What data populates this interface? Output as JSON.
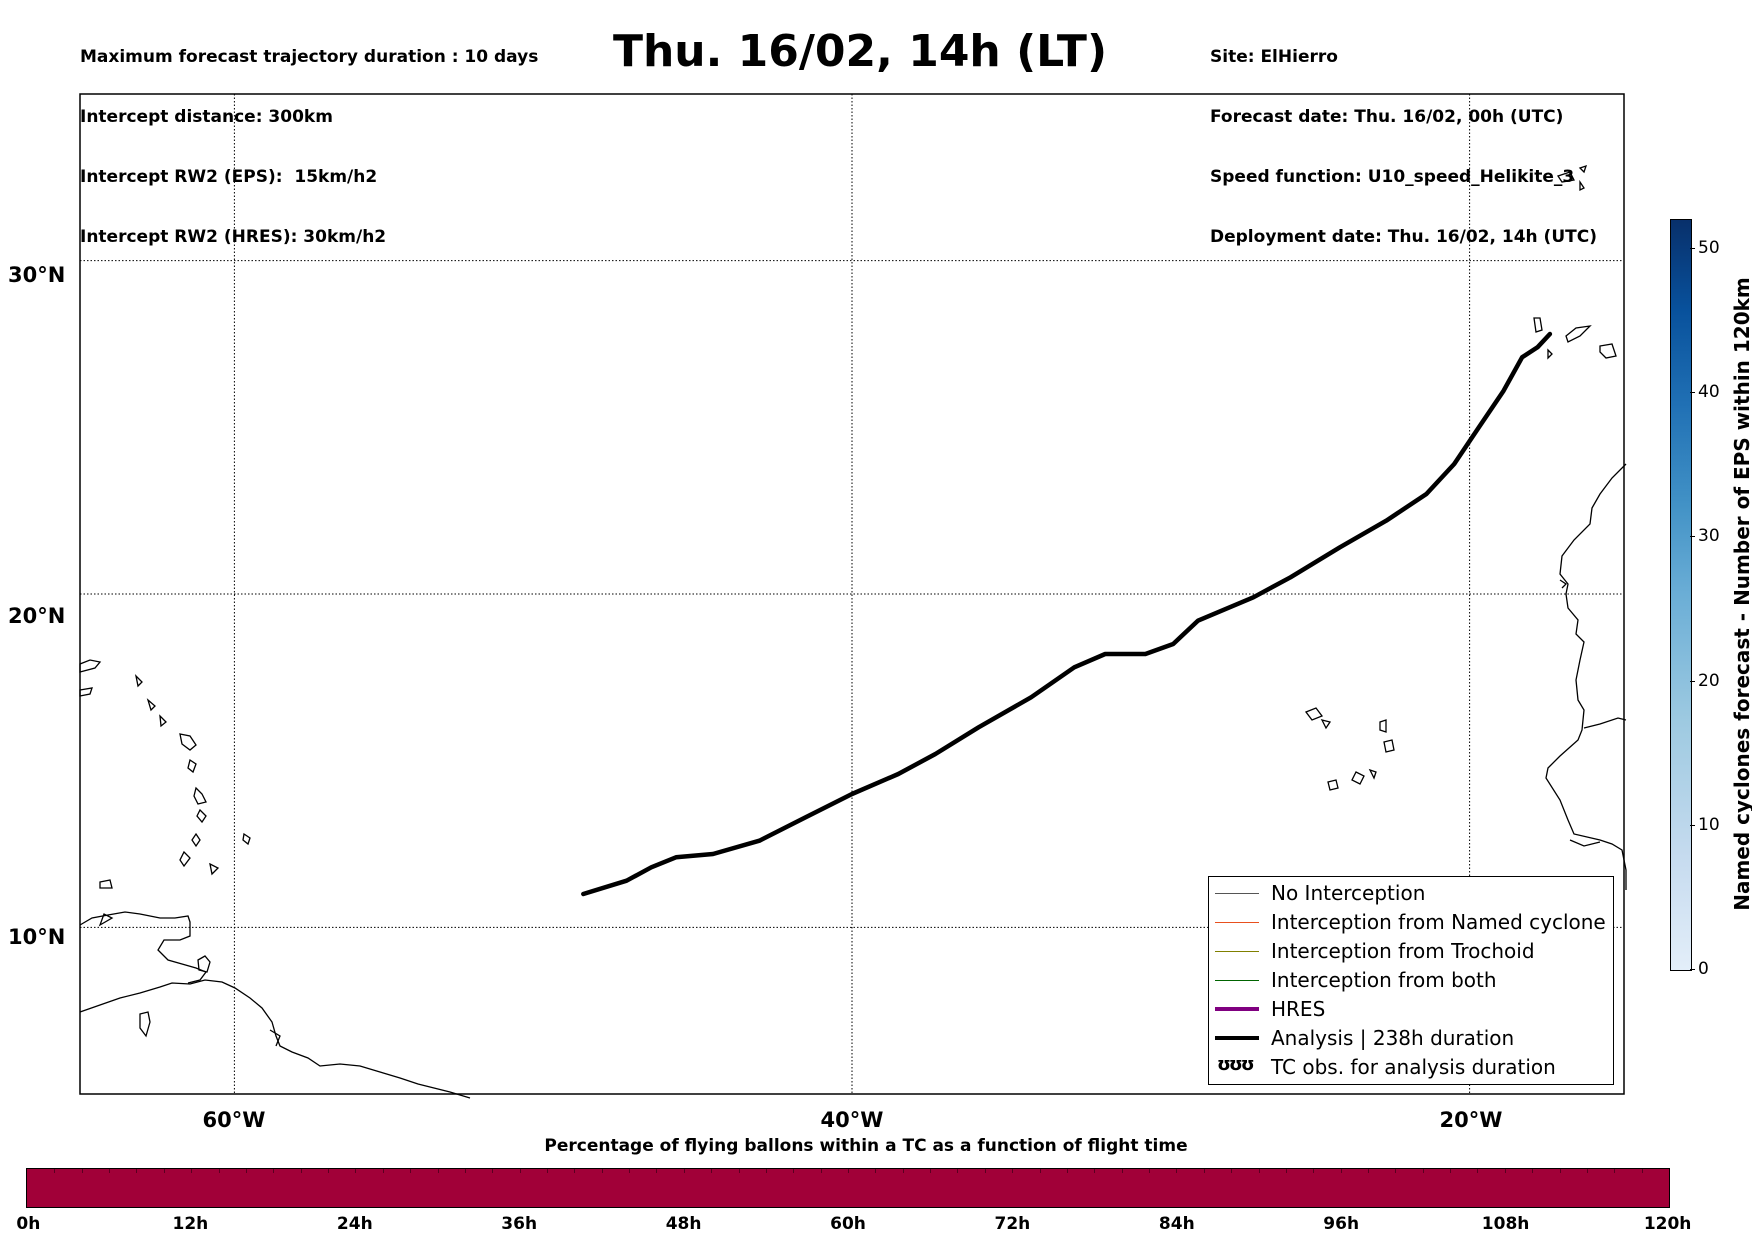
{
  "header": {
    "left_lines": [
      "Maximum forecast trajectory duration : 10 days",
      "Intercept distance: 300km",
      "Intercept RW2 (EPS):  15km/h2",
      "Intercept RW2 (HRES): 30km/h2"
    ],
    "title": "Thu. 16/02, 14h (LT)",
    "right_lines": [
      "Site: ElHierro",
      "Forecast date: Thu. 16/02, 00h (UTC)",
      "Speed function: U10_speed_Helikite_3",
      "Deployment date: Thu. 16/02, 14h (UTC)"
    ]
  },
  "map": {
    "lon_range": [
      -65,
      -15
    ],
    "lat_range": [
      5,
      35
    ],
    "lat_ticks": [
      {
        "value": 30,
        "label": "30°N"
      },
      {
        "value": 20,
        "label": "20°N"
      },
      {
        "value": 10,
        "label": "10°N"
      }
    ],
    "lon_ticks": [
      {
        "value": -60,
        "label": "60°W"
      },
      {
        "value": -40,
        "label": "40°W"
      },
      {
        "value": -20,
        "label": "20°W"
      }
    ],
    "analysis_track": [
      [
        -48.7,
        11.0
      ],
      [
        -47.3,
        11.4
      ],
      [
        -46.5,
        11.8
      ],
      [
        -45.7,
        12.1
      ],
      [
        -44.5,
        12.2
      ],
      [
        -43.0,
        12.6
      ],
      [
        -41.5,
        13.3
      ],
      [
        -40.0,
        14.0
      ],
      [
        -38.5,
        14.6
      ],
      [
        -37.3,
        15.2
      ],
      [
        -35.9,
        16.0
      ],
      [
        -34.2,
        16.9
      ],
      [
        -32.8,
        17.8
      ],
      [
        -31.8,
        18.2
      ],
      [
        -30.5,
        18.2
      ],
      [
        -29.6,
        18.5
      ],
      [
        -28.8,
        19.2
      ],
      [
        -27.0,
        19.9
      ],
      [
        -25.8,
        20.5
      ],
      [
        -24.2,
        21.4
      ],
      [
        -22.7,
        22.2
      ],
      [
        -21.4,
        23.0
      ],
      [
        -20.5,
        23.9
      ],
      [
        -19.7,
        25.0
      ],
      [
        -18.9,
        26.1
      ],
      [
        -18.3,
        27.1
      ],
      [
        -17.8,
        27.4
      ],
      [
        -17.4,
        27.8
      ]
    ]
  },
  "legend": {
    "items": [
      {
        "label": "No Interception",
        "color": "#555555",
        "width": 1
      },
      {
        "label": "Interception from Named cyclone",
        "color": "#e8501e",
        "width": 1.5
      },
      {
        "label": "Interception from Trochoid",
        "color": "#808000",
        "width": 1.5
      },
      {
        "label": "Interception from both",
        "color": "#006400",
        "width": 1.5
      },
      {
        "label": "HRES",
        "color": "#800080",
        "width": 4
      },
      {
        "label": "Analysis | 238h duration",
        "color": "#000000",
        "width": 4
      }
    ],
    "tc_icon": "ʊʊʊ",
    "tc_label": "TC obs. for analysis duration"
  },
  "colorbar": {
    "label": "Named cyclones forecast - Number of EPS within 120km",
    "ticks": [
      0,
      10,
      20,
      30,
      40,
      50
    ],
    "max": 52
  },
  "flight_bar": {
    "title": "Percentage of flying ballons within a TC as a function of flight time",
    "ticks": [
      "0h",
      "12h",
      "24h",
      "36h",
      "48h",
      "60h",
      "72h",
      "84h",
      "96h",
      "108h",
      "120h"
    ],
    "color": "#a10038"
  }
}
